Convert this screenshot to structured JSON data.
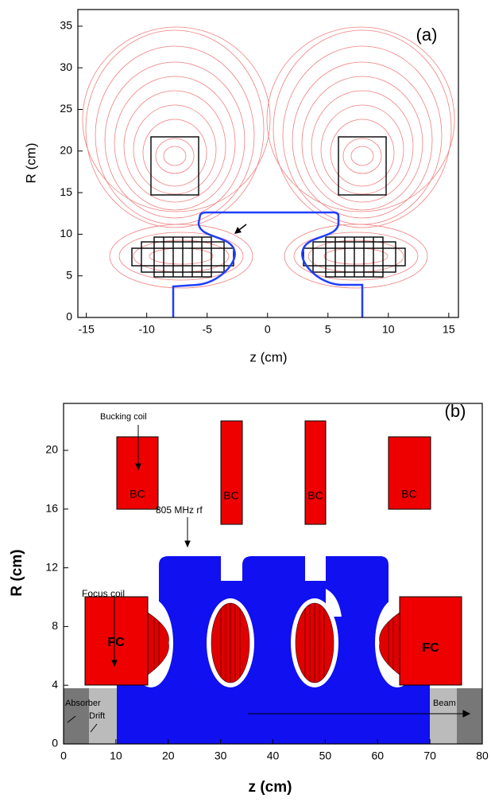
{
  "chart_data": [
    {
      "type": "contour",
      "title": "(a)",
      "x_label": "z (cm)",
      "y_label": "R (cm)",
      "xlim": [
        -15.7,
        15.8
      ],
      "ylim": [
        0,
        37
      ],
      "xticks": [
        -15,
        -10,
        -5,
        0,
        5,
        10,
        15
      ],
      "yticks": [
        0,
        5,
        10,
        15,
        20,
        25,
        30,
        35
      ]
    },
    {
      "type": "schematic",
      "title": "(b)",
      "x_label": "z (cm)",
      "y_label": "R (cm)",
      "xlim": [
        0,
        80
      ],
      "ylim": [
        0,
        23.2
      ],
      "xticks": [
        0,
        10,
        20,
        30,
        40,
        50,
        60,
        70,
        80
      ],
      "yticks": [
        0,
        4,
        8,
        12,
        16,
        20
      ],
      "annotations": [
        "Bucking coil",
        "805 MHz rf",
        "Focus coil",
        "Absorber",
        "Drift",
        "Beam",
        "BC",
        "BC",
        "BC",
        "BC",
        "FC",
        "FC"
      ]
    }
  ]
}
